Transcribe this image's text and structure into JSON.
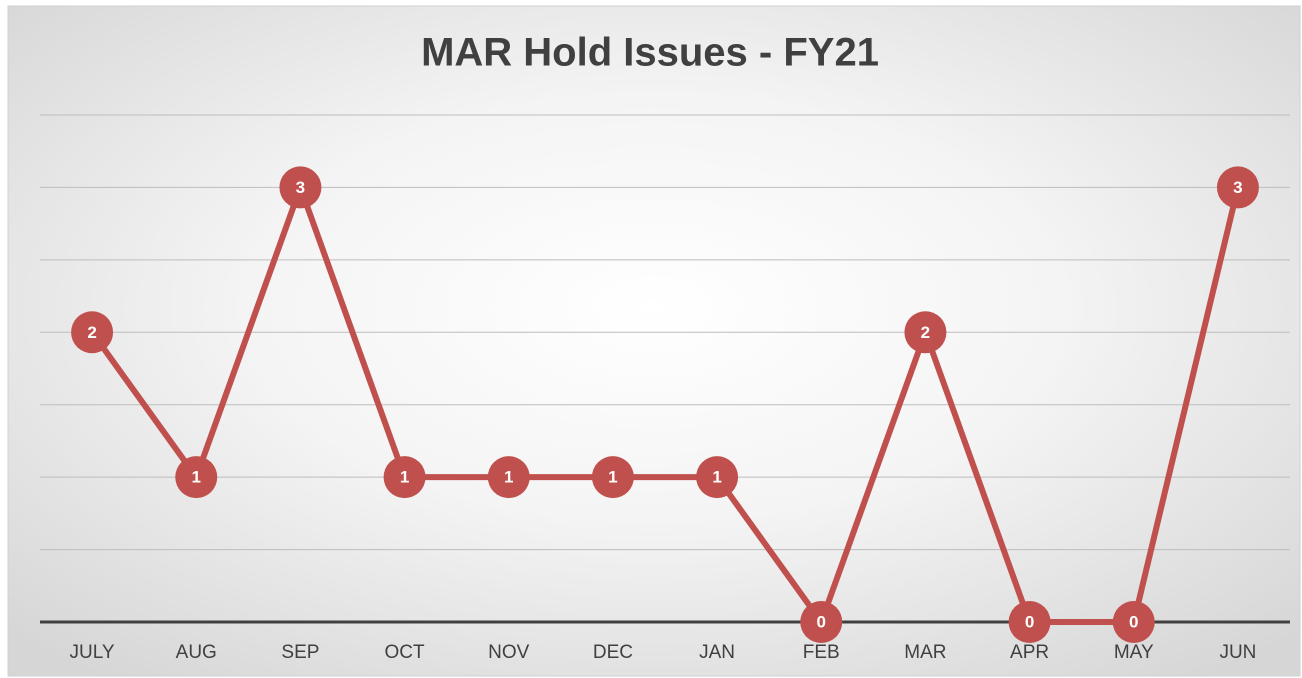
{
  "chart_data": {
    "type": "line",
    "title": "MAR Hold Issues - FY21",
    "categories": [
      "JULY",
      "AUG",
      "SEP",
      "OCT",
      "NOV",
      "DEC",
      "JAN",
      "FEB",
      "MAR",
      "APR",
      "MAY",
      "JUN"
    ],
    "values": [
      2,
      1,
      3,
      1,
      1,
      1,
      1,
      0,
      2,
      0,
      0,
      3
    ],
    "color": "#c0504d",
    "ylim": [
      0,
      3.5
    ],
    "yticks": [
      0,
      0.5,
      1,
      1.5,
      2,
      2.5,
      3,
      3.5
    ],
    "grid": true
  }
}
